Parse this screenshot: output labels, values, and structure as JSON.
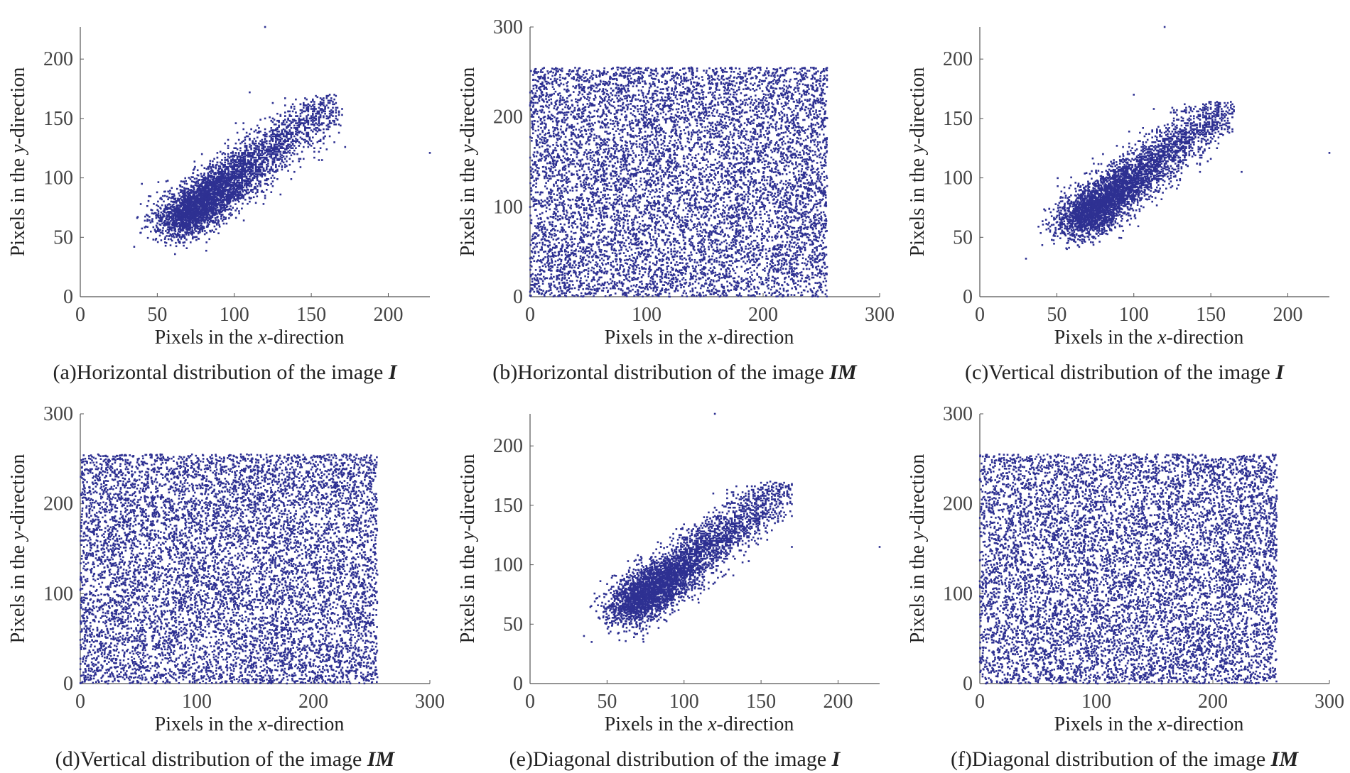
{
  "marker_color": "#2E3192",
  "chart_data": [
    {
      "id": "a",
      "type": "scatter",
      "title": "(a)Horizontal distribution of the image ",
      "image_label": "I",
      "xlabel_pre": "Pixels in the ",
      "xlabel_var": "x",
      "xlabel_post": "-direction",
      "ylabel_pre": "Pixels in the ",
      "ylabel_var": "y",
      "ylabel_post": "-direction",
      "xlim": [
        0,
        227
      ],
      "ylim": [
        0,
        227
      ],
      "xticks": [
        0,
        50,
        100,
        150,
        200
      ],
      "yticks": [
        0,
        50,
        100,
        150,
        200
      ],
      "distribution": "correlated",
      "core": {
        "x_range": [
          55,
          165
        ],
        "y_range": [
          55,
          165
        ]
      },
      "outliers": [
        [
          120,
          227
        ],
        [
          110,
          172
        ],
        [
          172,
          126
        ],
        [
          227,
          121
        ],
        [
          40,
          95
        ],
        [
          35,
          42
        ],
        [
          155,
          115
        ]
      ]
    },
    {
      "id": "b",
      "type": "scatter",
      "title": "(b)Horizontal distribution of the image ",
      "image_label": "IM",
      "xlabel_pre": "Pixels in the ",
      "xlabel_var": "x",
      "xlabel_post": "-direction",
      "ylabel_pre": "Pixels in the ",
      "ylabel_var": "y",
      "ylabel_post": "-direction",
      "xlim": [
        0,
        300
      ],
      "ylim": [
        0,
        300
      ],
      "xticks": [
        0,
        100,
        200,
        300
      ],
      "yticks": [
        0,
        100,
        200,
        300
      ],
      "distribution": "uniform",
      "uniform_range": {
        "x": [
          0,
          255
        ],
        "y": [
          0,
          255
        ]
      }
    },
    {
      "id": "c",
      "type": "scatter",
      "title": "(c)Vertical distribution of the image ",
      "image_label": "I",
      "xlabel_pre": "Pixels in the ",
      "xlabel_var": "x",
      "xlabel_post": "-direction",
      "ylabel_pre": "Pixels in the ",
      "ylabel_var": "y",
      "ylabel_post": "-direction",
      "xlim": [
        0,
        227
      ],
      "ylim": [
        0,
        227
      ],
      "xticks": [
        0,
        50,
        100,
        150,
        200
      ],
      "yticks": [
        0,
        50,
        100,
        150,
        200
      ],
      "distribution": "correlated",
      "core": {
        "x_range": [
          45,
          160
        ],
        "y_range": [
          50,
          160
        ]
      },
      "outliers": [
        [
          120,
          227
        ],
        [
          227,
          121
        ],
        [
          170,
          105
        ],
        [
          30,
          32
        ],
        [
          165,
          160
        ],
        [
          100,
          170
        ]
      ]
    },
    {
      "id": "d",
      "type": "scatter",
      "title": "(d)Vertical distribution of the image ",
      "image_label": "IM",
      "xlabel_pre": "Pixels in the ",
      "xlabel_var": "x",
      "xlabel_post": "-direction",
      "ylabel_pre": "Pixels in the ",
      "ylabel_var": "y",
      "ylabel_post": "-direction",
      "xlim": [
        0,
        300
      ],
      "ylim": [
        0,
        300
      ],
      "xticks": [
        0,
        100,
        200,
        300
      ],
      "yticks": [
        0,
        100,
        200,
        300
      ],
      "distribution": "uniform",
      "uniform_range": {
        "x": [
          0,
          255
        ],
        "y": [
          0,
          255
        ]
      }
    },
    {
      "id": "e",
      "type": "scatter",
      "title": "(e)Diagonal distribution of the image ",
      "image_label": "I",
      "xlabel_pre": "Pixels in the ",
      "xlabel_var": "x",
      "xlabel_post": "-direction",
      "ylabel_pre": "Pixels in the ",
      "ylabel_var": "y",
      "ylabel_post": "-direction",
      "xlim": [
        0,
        227
      ],
      "ylim": [
        0,
        227
      ],
      "xticks": [
        0,
        50,
        100,
        150,
        200
      ],
      "yticks": [
        0,
        50,
        100,
        150,
        200
      ],
      "distribution": "correlated",
      "core": {
        "x_range": [
          50,
          165
        ],
        "y_range": [
          55,
          165
        ]
      },
      "outliers": [
        [
          120,
          227
        ],
        [
          227,
          115
        ],
        [
          170,
          115
        ],
        [
          35,
          40
        ],
        [
          40,
          35
        ],
        [
          165,
          158
        ]
      ]
    },
    {
      "id": "f",
      "type": "scatter",
      "title": "(f)Diagonal distribution of the image ",
      "image_label": "IM",
      "xlabel_pre": "Pixels in the ",
      "xlabel_var": "x",
      "xlabel_post": "-direction",
      "ylabel_pre": "Pixels in the ",
      "ylabel_var": "y",
      "ylabel_post": "-direction",
      "xlim": [
        0,
        300
      ],
      "ylim": [
        0,
        300
      ],
      "xticks": [
        0,
        100,
        200,
        300
      ],
      "yticks": [
        0,
        100,
        200,
        300
      ],
      "distribution": "uniform",
      "uniform_range": {
        "x": [
          0,
          255
        ],
        "y": [
          0,
          255
        ]
      }
    }
  ]
}
